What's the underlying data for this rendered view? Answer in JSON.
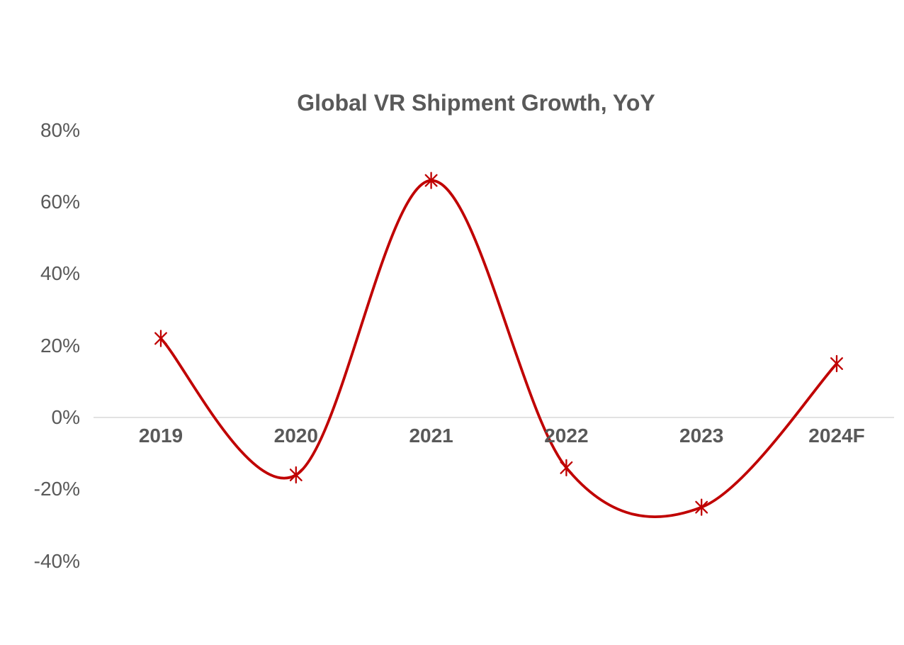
{
  "chart_data": {
    "type": "line",
    "title": "Global VR Shipment Growth, YoY",
    "categories": [
      "2019",
      "2020",
      "2021",
      "2022",
      "2023",
      "2024F"
    ],
    "values": [
      22,
      -16,
      66,
      -14,
      -25,
      15
    ],
    "xlabel": "",
    "ylabel": "",
    "y_ticks": [
      80,
      60,
      40,
      20,
      0,
      -20,
      -40
    ],
    "y_tick_suffix": "%",
    "ylim": [
      -40,
      80
    ],
    "grid": false,
    "zero_axis_line": true,
    "legend": "none",
    "smooth": true,
    "marker": "asterisk",
    "colors": {
      "line": "#C00000",
      "marker": "#C00000",
      "text": "#595959",
      "zero_line": "#D9D9D9",
      "background": "#FFFFFF"
    }
  }
}
